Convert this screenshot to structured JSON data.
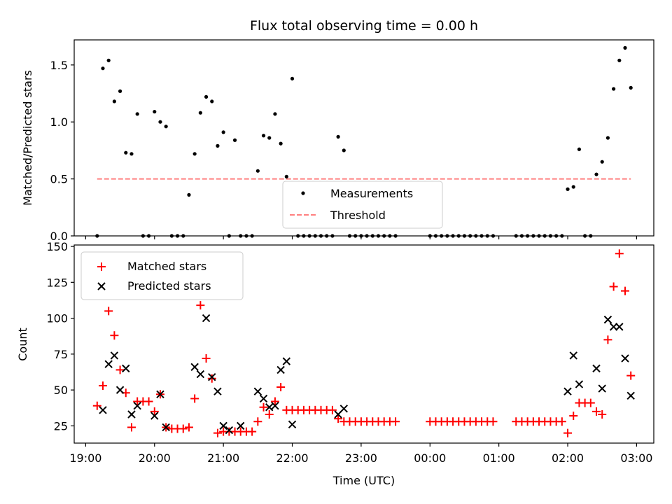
{
  "chart_data": [
    {
      "type": "scatter",
      "title": "Flux total observing time = 0.00 h",
      "xlabel": "",
      "ylabel": "Matched/Predicted stars",
      "ylim": [
        0,
        1.72
      ],
      "yticks": [
        "0.0",
        "0.5",
        "1.0",
        "1.5"
      ],
      "ytick_values": [
        0,
        0.5,
        1.0,
        1.5
      ],
      "legend": {
        "placement": "lower-center",
        "entries": [
          "Measurements",
          "Threshold"
        ]
      },
      "threshold": {
        "name": "Threshold",
        "value": 0.5,
        "x_range": [
          "19:10",
          "02:55"
        ],
        "color": "#ff8080"
      },
      "series": [
        {
          "name": "Measurements",
          "color": "#000000",
          "points": [
            [
              "19:10",
              0.0
            ],
            [
              "19:15",
              1.47
            ],
            [
              "19:20",
              1.54
            ],
            [
              "19:25",
              1.18
            ],
            [
              "19:30",
              1.27
            ],
            [
              "19:35",
              0.73
            ],
            [
              "19:40",
              0.72
            ],
            [
              "19:45",
              1.07
            ],
            [
              "19:50",
              0.0
            ],
            [
              "19:55",
              0.0
            ],
            [
              "20:00",
              1.09
            ],
            [
              "20:05",
              1.0
            ],
            [
              "20:10",
              0.96
            ],
            [
              "20:15",
              0.0
            ],
            [
              "20:20",
              0.0
            ],
            [
              "20:25",
              0.0
            ],
            [
              "20:30",
              0.36
            ],
            [
              "20:35",
              0.72
            ],
            [
              "20:40",
              1.08
            ],
            [
              "20:45",
              1.22
            ],
            [
              "20:50",
              1.18
            ],
            [
              "20:55",
              0.79
            ],
            [
              "21:00",
              0.91
            ],
            [
              "21:05",
              0.0
            ],
            [
              "21:10",
              0.84
            ],
            [
              "21:15",
              0.0
            ],
            [
              "21:20",
              0.0
            ],
            [
              "21:25",
              0.0
            ],
            [
              "21:30",
              0.57
            ],
            [
              "21:35",
              0.88
            ],
            [
              "21:40",
              0.86
            ],
            [
              "21:45",
              1.07
            ],
            [
              "21:50",
              0.81
            ],
            [
              "21:55",
              0.52
            ],
            [
              "22:00",
              1.38
            ],
            [
              "22:05",
              0.0
            ],
            [
              "22:10",
              0.0
            ],
            [
              "22:15",
              0.0
            ],
            [
              "22:20",
              0.0
            ],
            [
              "22:25",
              0.0
            ],
            [
              "22:30",
              0.0
            ],
            [
              "22:35",
              0.0
            ],
            [
              "22:40",
              0.87
            ],
            [
              "22:45",
              0.75
            ],
            [
              "22:50",
              0.0
            ],
            [
              "22:55",
              0.0
            ],
            [
              "23:00",
              0.0
            ],
            [
              "23:05",
              0.0
            ],
            [
              "23:10",
              0.0
            ],
            [
              "23:15",
              0.0
            ],
            [
              "23:20",
              0.0
            ],
            [
              "23:25",
              0.0
            ],
            [
              "23:30",
              0.0
            ],
            [
              "00:00",
              0.0
            ],
            [
              "00:05",
              0.0
            ],
            [
              "00:10",
              0.0
            ],
            [
              "00:15",
              0.0
            ],
            [
              "00:20",
              0.0
            ],
            [
              "00:25",
              0.0
            ],
            [
              "00:30",
              0.0
            ],
            [
              "00:35",
              0.0
            ],
            [
              "00:40",
              0.0
            ],
            [
              "00:45",
              0.0
            ],
            [
              "00:50",
              0.0
            ],
            [
              "00:55",
              0.0
            ],
            [
              "01:15",
              0.0
            ],
            [
              "01:20",
              0.0
            ],
            [
              "01:25",
              0.0
            ],
            [
              "01:30",
              0.0
            ],
            [
              "01:35",
              0.0
            ],
            [
              "01:40",
              0.0
            ],
            [
              "01:45",
              0.0
            ],
            [
              "01:50",
              0.0
            ],
            [
              "01:55",
              0.0
            ],
            [
              "02:00",
              0.41
            ],
            [
              "02:05",
              0.43
            ],
            [
              "02:10",
              0.76
            ],
            [
              "02:15",
              0.0
            ],
            [
              "02:20",
              0.0
            ],
            [
              "02:25",
              0.54
            ],
            [
              "02:30",
              0.65
            ],
            [
              "02:35",
              0.86
            ],
            [
              "02:40",
              1.29
            ],
            [
              "02:45",
              1.54
            ],
            [
              "02:50",
              1.65
            ],
            [
              "02:55",
              1.3
            ]
          ]
        }
      ]
    },
    {
      "type": "scatter",
      "title": "",
      "xlabel": "Time (UTC)",
      "ylabel": "Count",
      "ylim": [
        13,
        151
      ],
      "yticks": [
        "25",
        "50",
        "75",
        "100",
        "125",
        "150"
      ],
      "ytick_values": [
        25,
        50,
        75,
        100,
        125,
        150
      ],
      "xticks": [
        "19:00",
        "20:00",
        "21:00",
        "22:00",
        "23:00",
        "00:00",
        "01:00",
        "02:00",
        "03:00"
      ],
      "xrange": [
        "18:50",
        "03:15"
      ],
      "legend": {
        "placement": "upper-left",
        "entries": [
          "Matched stars",
          "Predicted stars"
        ]
      },
      "series": [
        {
          "name": "Matched stars",
          "marker": "plus",
          "color": "#ff0000",
          "points": [
            [
              "19:10",
              39
            ],
            [
              "19:15",
              53
            ],
            [
              "19:20",
              105
            ],
            [
              "19:25",
              88
            ],
            [
              "19:30",
              64
            ],
            [
              "19:35",
              48
            ],
            [
              "19:40",
              24
            ],
            [
              "19:45",
              42
            ],
            [
              "19:50",
              42
            ],
            [
              "19:55",
              42
            ],
            [
              "20:00",
              35
            ],
            [
              "20:05",
              47
            ],
            [
              "20:10",
              24
            ],
            [
              "20:15",
              23
            ],
            [
              "20:20",
              23
            ],
            [
              "20:25",
              23
            ],
            [
              "20:30",
              24
            ],
            [
              "20:35",
              44
            ],
            [
              "20:40",
              109
            ],
            [
              "20:45",
              72
            ],
            [
              "20:50",
              58
            ],
            [
              "20:55",
              20
            ],
            [
              "21:00",
              21
            ],
            [
              "21:05",
              21
            ],
            [
              "21:10",
              21
            ],
            [
              "21:15",
              21
            ],
            [
              "21:20",
              21
            ],
            [
              "21:25",
              21
            ],
            [
              "21:30",
              28
            ],
            [
              "21:35",
              38
            ],
            [
              "21:40",
              33
            ],
            [
              "21:45",
              42
            ],
            [
              "21:50",
              52
            ],
            [
              "21:55",
              36
            ],
            [
              "22:00",
              36
            ],
            [
              "22:05",
              36
            ],
            [
              "22:10",
              36
            ],
            [
              "22:15",
              36
            ],
            [
              "22:20",
              36
            ],
            [
              "22:25",
              36
            ],
            [
              "22:30",
              36
            ],
            [
              "22:35",
              36
            ],
            [
              "22:40",
              30
            ],
            [
              "22:45",
              28
            ],
            [
              "22:50",
              28
            ],
            [
              "22:55",
              28
            ],
            [
              "23:00",
              28
            ],
            [
              "23:05",
              28
            ],
            [
              "23:10",
              28
            ],
            [
              "23:15",
              28
            ],
            [
              "23:20",
              28
            ],
            [
              "23:25",
              28
            ],
            [
              "23:30",
              28
            ],
            [
              "00:00",
              28
            ],
            [
              "00:05",
              28
            ],
            [
              "00:10",
              28
            ],
            [
              "00:15",
              28
            ],
            [
              "00:20",
              28
            ],
            [
              "00:25",
              28
            ],
            [
              "00:30",
              28
            ],
            [
              "00:35",
              28
            ],
            [
              "00:40",
              28
            ],
            [
              "00:45",
              28
            ],
            [
              "00:50",
              28
            ],
            [
              "00:55",
              28
            ],
            [
              "01:15",
              28
            ],
            [
              "01:20",
              28
            ],
            [
              "01:25",
              28
            ],
            [
              "01:30",
              28
            ],
            [
              "01:35",
              28
            ],
            [
              "01:40",
              28
            ],
            [
              "01:45",
              28
            ],
            [
              "01:50",
              28
            ],
            [
              "01:55",
              28
            ],
            [
              "02:00",
              20
            ],
            [
              "02:05",
              32
            ],
            [
              "02:10",
              41
            ],
            [
              "02:15",
              41
            ],
            [
              "02:20",
              41
            ],
            [
              "02:25",
              35
            ],
            [
              "02:30",
              33
            ],
            [
              "02:35",
              85
            ],
            [
              "02:40",
              122
            ],
            [
              "02:45",
              145
            ],
            [
              "02:50",
              119
            ],
            [
              "02:55",
              60
            ]
          ]
        },
        {
          "name": "Predicted stars",
          "marker": "cross",
          "color": "#000000",
          "points": [
            [
              "19:15",
              36
            ],
            [
              "19:20",
              68
            ],
            [
              "19:25",
              74
            ],
            [
              "19:30",
              50
            ],
            [
              "19:35",
              65
            ],
            [
              "19:40",
              33
            ],
            [
              "19:45",
              39
            ],
            [
              "20:00",
              32
            ],
            [
              "20:05",
              47
            ],
            [
              "20:10",
              24
            ],
            [
              "20:35",
              66
            ],
            [
              "20:40",
              61
            ],
            [
              "20:45",
              100
            ],
            [
              "20:50",
              59
            ],
            [
              "20:55",
              49
            ],
            [
              "21:00",
              25
            ],
            [
              "21:05",
              22
            ],
            [
              "21:15",
              25
            ],
            [
              "21:30",
              49
            ],
            [
              "21:35",
              44
            ],
            [
              "21:40",
              38
            ],
            [
              "21:45",
              39
            ],
            [
              "21:50",
              64
            ],
            [
              "21:55",
              70
            ],
            [
              "22:00",
              26
            ],
            [
              "22:40",
              33
            ],
            [
              "22:45",
              37
            ],
            [
              "02:00",
              49
            ],
            [
              "02:05",
              74
            ],
            [
              "02:10",
              54
            ],
            [
              "02:25",
              65
            ],
            [
              "02:30",
              51
            ],
            [
              "02:35",
              99
            ],
            [
              "02:40",
              94
            ],
            [
              "02:45",
              94
            ],
            [
              "02:50",
              72
            ],
            [
              "02:55",
              46
            ]
          ]
        }
      ]
    }
  ]
}
